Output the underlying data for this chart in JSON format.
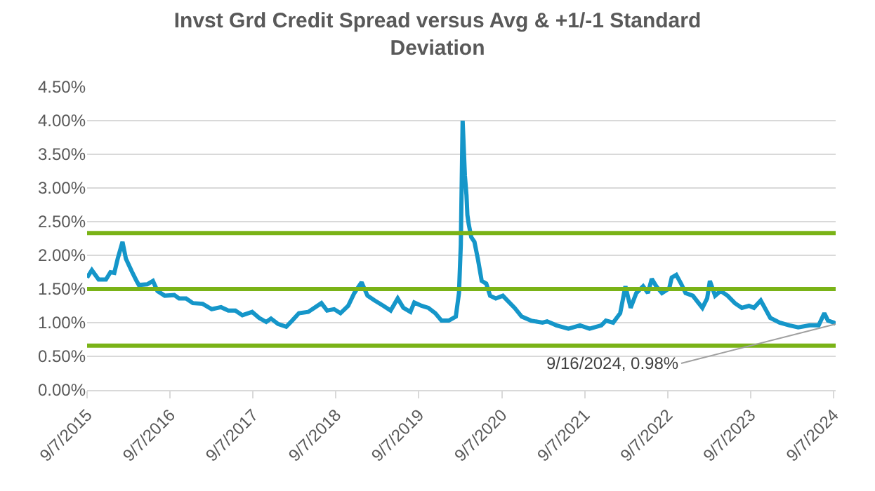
{
  "chart_data": {
    "type": "line",
    "title": "Invst Grd Credit Spread versus Avg & +1/-1 Standard Deviation",
    "x": [
      "2015-09-07",
      "2015-09-28",
      "2015-10-28",
      "2015-11-29",
      "2015-12-19",
      "2016-01-05",
      "2016-01-20",
      "2016-02-10",
      "2016-02-25",
      "2016-03-22",
      "2016-04-12",
      "2016-04-22",
      "2016-05-29",
      "2016-06-23",
      "2016-07-13",
      "2016-08-14",
      "2016-09-25",
      "2016-10-16",
      "2016-11-16",
      "2016-12-16",
      "2017-01-28",
      "2017-03-09",
      "2017-04-19",
      "2017-05-21",
      "2017-06-21",
      "2017-07-22",
      "2017-09-03",
      "2017-10-04",
      "2017-11-04",
      "2017-11-25",
      "2017-12-26",
      "2018-01-31",
      "2018-02-26",
      "2018-03-28",
      "2018-05-08",
      "2018-07-05",
      "2018-07-30",
      "2018-08-30",
      "2018-09-27",
      "2018-10-31",
      "2018-11-27",
      "2018-12-29",
      "2019-01-24",
      "2019-02-24",
      "2019-04-04",
      "2019-05-06",
      "2019-06-06",
      "2019-07-01",
      "2019-08-01",
      "2019-08-18",
      "2019-09-19",
      "2019-10-19",
      "2019-11-19",
      "2019-12-16",
      "2020-01-17",
      "2020-02-17",
      "2020-03-02",
      "2020-03-10",
      "2020-03-18",
      "2020-03-28",
      "2020-04-04",
      "2020-04-08",
      "2020-04-14",
      "2020-04-25",
      "2020-05-09",
      "2020-05-24",
      "2020-06-10",
      "2020-06-30",
      "2020-07-17",
      "2020-08-11",
      "2020-09-11",
      "2020-10-01",
      "2020-11-02",
      "2020-12-03",
      "2021-01-13",
      "2021-03-05",
      "2021-03-25",
      "2021-05-05",
      "2021-06-27",
      "2021-08-17",
      "2021-09-28",
      "2021-11-19",
      "2021-12-09",
      "2022-01-10",
      "2022-02-10",
      "2022-03-05",
      "2022-03-28",
      "2022-04-22",
      "2022-05-22",
      "2022-06-12",
      "2022-06-29",
      "2022-07-19",
      "2022-08-13",
      "2022-09-14",
      "2022-09-25",
      "2022-10-15",
      "2022-11-05",
      "2022-11-25",
      "2022-12-27",
      "2023-02-07",
      "2023-02-28",
      "2023-03-12",
      "2023-04-04",
      "2023-04-28",
      "2023-05-29",
      "2023-06-30",
      "2023-07-31",
      "2023-08-31",
      "2023-09-22",
      "2023-10-22",
      "2023-12-03",
      "2024-01-13",
      "2024-02-25",
      "2024-04-04",
      "2024-05-25",
      "2024-07-03",
      "2024-07-28",
      "2024-08-13",
      "2024-09-08",
      "2024-09-16"
    ],
    "series": [
      {
        "color": "#1596c9",
        "values": [
          1.67,
          1.78,
          1.64,
          1.64,
          1.75,
          1.74,
          1.95,
          2.2,
          1.95,
          1.76,
          1.62,
          1.56,
          1.57,
          1.62,
          1.47,
          1.4,
          1.41,
          1.36,
          1.36,
          1.29,
          1.28,
          1.2,
          1.23,
          1.18,
          1.18,
          1.11,
          1.16,
          1.07,
          1.01,
          1.06,
          0.98,
          0.94,
          1.03,
          1.14,
          1.16,
          1.29,
          1.18,
          1.2,
          1.14,
          1.25,
          1.44,
          1.6,
          1.4,
          1.33,
          1.25,
          1.18,
          1.36,
          1.22,
          1.16,
          1.3,
          1.25,
          1.22,
          1.14,
          1.03,
          1.03,
          1.09,
          1.44,
          2.16,
          4.0,
          3.18,
          2.89,
          2.6,
          2.46,
          2.27,
          2.2,
          1.95,
          1.62,
          1.58,
          1.4,
          1.36,
          1.4,
          1.33,
          1.22,
          1.09,
          1.03,
          1.0,
          1.02,
          0.96,
          0.91,
          0.96,
          0.91,
          0.96,
          1.03,
          1.0,
          1.14,
          1.54,
          1.22,
          1.44,
          1.54,
          1.44,
          1.65,
          1.54,
          1.44,
          1.51,
          1.67,
          1.71,
          1.58,
          1.44,
          1.4,
          1.22,
          1.36,
          1.62,
          1.4,
          1.47,
          1.4,
          1.29,
          1.22,
          1.25,
          1.22,
          1.33,
          1.07,
          1.0,
          0.96,
          0.93,
          0.96,
          0.96,
          1.14,
          1.03,
          1.0,
          0.98
        ]
      }
    ],
    "xlim": [
      "2015-09-07",
      "2024-09-16"
    ],
    "xticks": [
      {
        "value": "2015-09-07",
        "label": "9/7/2015"
      },
      {
        "value": "2016-09-07",
        "label": "9/7/2016"
      },
      {
        "value": "2017-09-07",
        "label": "9/7/2017"
      },
      {
        "value": "2018-09-07",
        "label": "9/7/2018"
      },
      {
        "value": "2019-09-07",
        "label": "9/7/2019"
      },
      {
        "value": "2020-09-07",
        "label": "9/7/2020"
      },
      {
        "value": "2021-09-07",
        "label": "9/7/2021"
      },
      {
        "value": "2022-09-07",
        "label": "9/7/2022"
      },
      {
        "value": "2023-09-07",
        "label": "9/7/2023"
      },
      {
        "value": "2024-09-07",
        "label": "9/7/2024"
      }
    ],
    "ylim": [
      0,
      4.5
    ],
    "yticks": [
      {
        "value": 0,
        "label": "0.00%"
      },
      {
        "value": 0.5,
        "label": "0.50%"
      },
      {
        "value": 1,
        "label": "1.00%"
      },
      {
        "value": 1.5,
        "label": "1.50%"
      },
      {
        "value": 2,
        "label": "2.00%"
      },
      {
        "value": 2.5,
        "label": "2.50%"
      },
      {
        "value": 3,
        "label": "3.00%"
      },
      {
        "value": 3.5,
        "label": "3.50%"
      },
      {
        "value": 4,
        "label": "4.00%"
      },
      {
        "value": 4.5,
        "label": "4.50%"
      }
    ],
    "ref_lines": [
      {
        "axis": "y",
        "value": 2.33,
        "color": "#7ab317"
      },
      {
        "axis": "y",
        "value": 1.5,
        "color": "#7ab317"
      },
      {
        "axis": "y",
        "value": 0.66,
        "color": "#7ab317"
      }
    ],
    "annotations": [
      {
        "text": "9/16/2024, 0.98%",
        "x": "2024-09-16",
        "y": 0.98
      }
    ],
    "grid": "y",
    "marker": "none",
    "line_style": "solid"
  }
}
